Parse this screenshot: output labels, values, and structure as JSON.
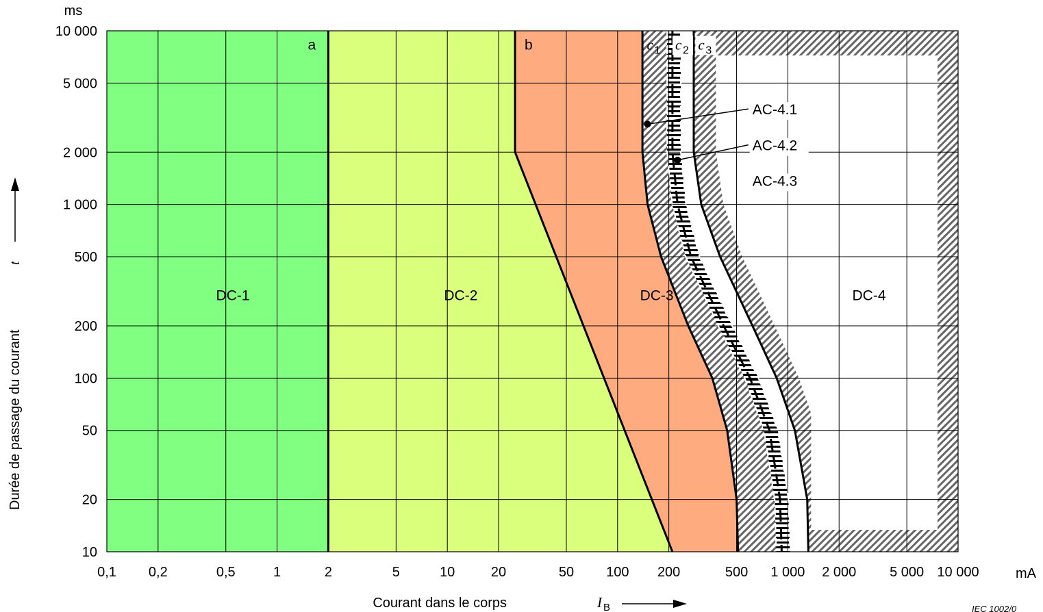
{
  "chart_data": {
    "type": "area",
    "x_scale": "log",
    "y_scale": "log",
    "xlim": [
      0.1,
      10000
    ],
    "ylim": [
      10,
      10000
    ],
    "grid": true,
    "x_ticks": [
      {
        "v": 0.1,
        "label": "0,1"
      },
      {
        "v": 0.2,
        "label": "0,2"
      },
      {
        "v": 0.5,
        "label": "0,5"
      },
      {
        "v": 1,
        "label": "1"
      },
      {
        "v": 2,
        "label": "2"
      },
      {
        "v": 5,
        "label": "5"
      },
      {
        "v": 10,
        "label": "10"
      },
      {
        "v": 20,
        "label": "20"
      },
      {
        "v": 50,
        "label": "50"
      },
      {
        "v": 100,
        "label": "100"
      },
      {
        "v": 200,
        "label": "200"
      },
      {
        "v": 500,
        "label": "500"
      },
      {
        "v": 1000,
        "label": "1 000"
      },
      {
        "v": 2000,
        "label": "2 000"
      },
      {
        "v": 5000,
        "label": "5 000"
      },
      {
        "v": 10000,
        "label": "10 000"
      }
    ],
    "y_ticks": [
      {
        "v": 10,
        "label": "10"
      },
      {
        "v": 20,
        "label": "20"
      },
      {
        "v": 50,
        "label": "50"
      },
      {
        "v": 100,
        "label": "100"
      },
      {
        "v": 200,
        "label": "200"
      },
      {
        "v": 500,
        "label": "500"
      },
      {
        "v": 1000,
        "label": "1 000"
      },
      {
        "v": 2000,
        "label": "2 000"
      },
      {
        "v": 5000,
        "label": "5 000"
      },
      {
        "v": 10000,
        "label": "10 000"
      }
    ],
    "x_unit": "mA",
    "y_unit": "ms",
    "xlabel": "Courant dans le corps",
    "xlabel_symbol": "I",
    "xlabel_subscript": "B",
    "ylabel": "Durée de passage du courant",
    "ylabel_symbol": "t",
    "curves": {
      "a": [
        [
          2,
          10
        ],
        [
          2,
          10000
        ]
      ],
      "b": [
        [
          25,
          10000
        ],
        [
          25,
          2000
        ],
        [
          210,
          10
        ]
      ],
      "c1": [
        [
          140,
          10000
        ],
        [
          140,
          2000
        ],
        [
          150,
          1000
        ],
        [
          180,
          500
        ],
        [
          260,
          200
        ],
        [
          360,
          100
        ],
        [
          440,
          50
        ],
        [
          500,
          20
        ],
        [
          510,
          10
        ]
      ],
      "c2": [
        [
          210,
          10000
        ],
        [
          210,
          2000
        ],
        [
          225,
          1000
        ],
        [
          270,
          500
        ],
        [
          420,
          200
        ],
        [
          600,
          100
        ],
        [
          780,
          50
        ],
        [
          900,
          20
        ],
        [
          920,
          10
        ]
      ],
      "c3": [
        [
          280,
          10000
        ],
        [
          280,
          2000
        ],
        [
          310,
          1000
        ],
        [
          400,
          500
        ],
        [
          620,
          200
        ],
        [
          860,
          100
        ],
        [
          1100,
          50
        ],
        [
          1300,
          20
        ],
        [
          1320,
          10
        ]
      ]
    },
    "zones": [
      {
        "name": "DC-1",
        "color": "#80ff80",
        "label_at": [
          0.55,
          300
        ]
      },
      {
        "name": "DC-2",
        "color": "#daff7c",
        "label_at": [
          12,
          300
        ]
      },
      {
        "name": "DC-3",
        "color": "#ffab80",
        "label_at": [
          170,
          300
        ]
      },
      {
        "name": "DC-4",
        "color": "#ffffff",
        "label_at": [
          3000,
          300
        ]
      }
    ],
    "curve_labels": [
      {
        "name": "a",
        "at": [
          1.6,
          7800
        ]
      },
      {
        "name": "b",
        "at": [
          30,
          7800
        ]
      },
      {
        "name": "c1",
        "at": [
          160,
          7800
        ]
      },
      {
        "name": "c2",
        "at": [
          235,
          7800
        ]
      },
      {
        "name": "c3",
        "at": [
          320,
          7800
        ]
      }
    ],
    "annotations": [
      {
        "text": "AC-4.1",
        "at": [
          620,
          3300
        ],
        "point": [
          150,
          2900
        ]
      },
      {
        "text": "AC-4.2",
        "at": [
          620,
          2050
        ],
        "point": [
          225,
          1800
        ]
      },
      {
        "text": "AC-4.3",
        "at": [
          620,
          1280
        ],
        "point": null
      }
    ],
    "source_note": "IEC 1002/0"
  }
}
